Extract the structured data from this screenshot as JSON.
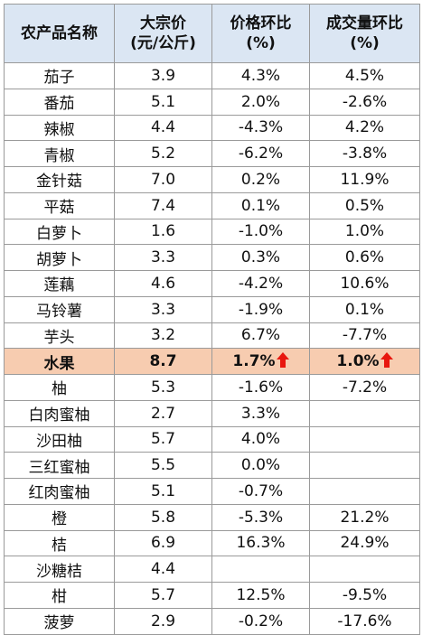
{
  "headers": [
    {
      "line1": "农产品名称",
      "line2": ""
    },
    {
      "line1": "大宗价",
      "line2": "(元/公斤)"
    },
    {
      "line1": "价格环比",
      "line2": "(%)"
    },
    {
      "line1": "成交量环比",
      "line2": "(%)"
    }
  ],
  "rows": [
    {
      "name": "茄子",
      "price": "3.9",
      "price_mom": "4.3%",
      "volume_mom": "4.5%"
    },
    {
      "name": "番茄",
      "price": "5.1",
      "price_mom": "2.0%",
      "volume_mom": "-2.6%"
    },
    {
      "name": "辣椒",
      "price": "4.4",
      "price_mom": "-4.3%",
      "volume_mom": "4.2%"
    },
    {
      "name": "青椒",
      "price": "5.2",
      "price_mom": "-6.2%",
      "volume_mom": "-3.8%"
    },
    {
      "name": "金针菇",
      "price": "7.0",
      "price_mom": "0.2%",
      "volume_mom": "11.9%"
    },
    {
      "name": "平菇",
      "price": "7.4",
      "price_mom": "0.1%",
      "volume_mom": "0.5%"
    },
    {
      "name": "白萝卜",
      "price": "1.6",
      "price_mom": "-1.0%",
      "volume_mom": "1.0%"
    },
    {
      "name": "胡萝卜",
      "price": "3.3",
      "price_mom": "0.3%",
      "volume_mom": "0.6%"
    },
    {
      "name": "莲藕",
      "price": "4.6",
      "price_mom": "-4.2%",
      "volume_mom": "10.6%"
    },
    {
      "name": "马铃薯",
      "price": "3.3",
      "price_mom": "-1.9%",
      "volume_mom": "0.1%"
    },
    {
      "name": "芋头",
      "price": "3.2",
      "price_mom": "6.7%",
      "volume_mom": "-7.7%"
    },
    {
      "name": "水果",
      "price": "8.7",
      "price_mom": "1.7%",
      "volume_mom": "1.0%",
      "highlight": true,
      "price_arrow": "up-arrow-red",
      "volume_arrow": "up-arrow-red"
    },
    {
      "name": "柚",
      "price": "5.3",
      "price_mom": "-1.6%",
      "volume_mom": "-7.2%"
    },
    {
      "name": "白肉蜜柚",
      "price": "2.7",
      "price_mom": "3.3%",
      "volume_mom": ""
    },
    {
      "name": "沙田柚",
      "price": "5.7",
      "price_mom": "4.0%",
      "volume_mom": ""
    },
    {
      "name": "三红蜜柚",
      "price": "5.5",
      "price_mom": "0.0%",
      "volume_mom": ""
    },
    {
      "name": "红肉蜜柚",
      "price": "5.1",
      "price_mom": "-0.7%",
      "volume_mom": ""
    },
    {
      "name": "橙",
      "price": "5.8",
      "price_mom": "-5.3%",
      "volume_mom": "21.2%"
    },
    {
      "name": "桔",
      "price": "6.9",
      "price_mom": "16.3%",
      "volume_mom": "24.9%"
    },
    {
      "name": "沙糖桔",
      "price": "4.4",
      "price_mom": "",
      "volume_mom": ""
    },
    {
      "name": "柑",
      "price": "5.7",
      "price_mom": "12.5%",
      "volume_mom": "-9.5%"
    },
    {
      "name": "菠萝",
      "price": "2.9",
      "price_mom": "-0.2%",
      "volume_mom": "-17.6%"
    }
  ],
  "colors": {
    "header_bg": "#dbe6f3",
    "highlight_bg": "#f7ccb0",
    "arrow": "#e8170f",
    "border": "#9a9a9a"
  }
}
